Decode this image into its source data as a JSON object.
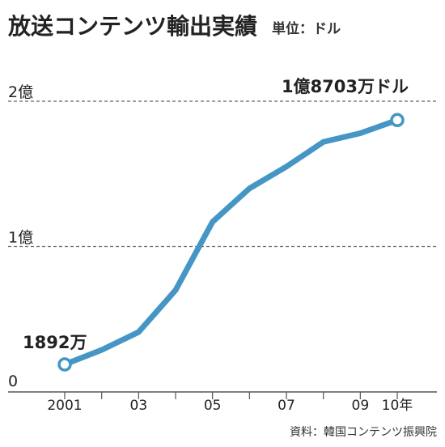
{
  "chart_data": {
    "type": "line",
    "title": "放送コンテンツ輸出実績",
    "unit_label": "単位：ドル",
    "source": "資料：韓国コンテンツ振興院",
    "x": [
      2001,
      2002,
      2003,
      2004,
      2005,
      2006,
      2007,
      2008,
      2009,
      2010
    ],
    "x_tick_labels": [
      "2001",
      "03",
      "05",
      "07",
      "09",
      "10年"
    ],
    "x_tick_values": [
      2001,
      2003,
      2005,
      2007,
      2009,
      2010
    ],
    "y_tick_labels": [
      "0",
      "1億",
      "2億"
    ],
    "y_tick_values": [
      0,
      100000000,
      200000000
    ],
    "ylim": [
      0,
      200000000
    ],
    "series": [
      {
        "values": [
          18920000,
          28900000,
          41200000,
          70000000,
          117000000,
          140000000,
          155000000,
          172000000,
          178000000,
          187030000
        ]
      }
    ],
    "annotations": {
      "start": "1892万",
      "end": "1億8703万ドル"
    },
    "colors": {
      "line": "#4596c4",
      "marker_fill": "#ffffff",
      "axis": "#555555",
      "grid": "#666666",
      "text": "#222222"
    },
    "grid": true,
    "grid_style": "dashed"
  }
}
